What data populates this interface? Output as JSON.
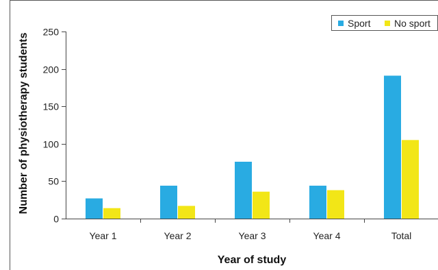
{
  "chart_data": {
    "type": "bar",
    "title": "",
    "xlabel": "Year of study",
    "ylabel": "Number of physiotherapy students",
    "categories": [
      "Year 1",
      "Year 2",
      "Year 3",
      "Year 4",
      "Total"
    ],
    "series": [
      {
        "name": "Sport",
        "color": "#29abe2",
        "values": [
          27,
          44,
          76,
          44,
          191
        ]
      },
      {
        "name": "No sport",
        "color": "#f2e617",
        "values": [
          14,
          17,
          36,
          38,
          105
        ]
      }
    ],
    "ylim": [
      0,
      250
    ],
    "yticks": [
      0,
      50,
      100,
      150,
      200,
      250
    ],
    "grid": false,
    "legend_position": "top-right"
  }
}
